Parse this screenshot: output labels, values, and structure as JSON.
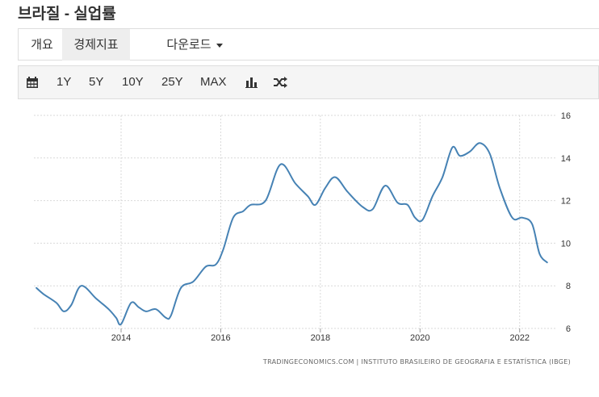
{
  "page": {
    "title": "브라질 - 실업률"
  },
  "tabs": [
    {
      "label": "개요"
    },
    {
      "label": "경제지표"
    },
    {
      "label": "다운로드"
    }
  ],
  "toolbar": {
    "calendar_icon": "calendar-icon",
    "ranges": [
      "1Y",
      "5Y",
      "10Y",
      "25Y",
      "MAX"
    ],
    "chart_type_icon": "bar-chart-icon",
    "compare_icon": "shuffle-icon"
  },
  "colors": {
    "line": "#4682b4",
    "tab_active_bg": "#eeeeee",
    "toolbar_bg": "#f5f5f5"
  },
  "chart_data": {
    "type": "line",
    "title": "",
    "xlabel": "",
    "ylabel": "",
    "ylim": [
      6,
      16
    ],
    "xlim": [
      2012.25,
      2022.75
    ],
    "y_axis_position": "right",
    "grid": true,
    "x_ticks": [
      "2014",
      "2016",
      "2018",
      "2020",
      "2022"
    ],
    "y_ticks": [
      "6",
      "8",
      "10",
      "12",
      "14",
      "16"
    ],
    "source": "TRADINGECONOMICS.COM | INSTITUTO BRASILEIRO DE GEOGRAFIA E ESTATÍSTICA (IBGE)",
    "series": [
      {
        "x": [
          2012.3,
          2012.45,
          2012.7,
          2012.85,
          2013.0,
          2013.2,
          2013.5,
          2013.75,
          2013.9,
          2014.0,
          2014.2,
          2014.35,
          2014.5,
          2014.7,
          2014.9,
          2015.0,
          2015.2,
          2015.45,
          2015.7,
          2015.9,
          2016.05,
          2016.25,
          2016.45,
          2016.6,
          2016.9,
          2017.2,
          2017.5,
          2017.75,
          2017.9,
          2018.1,
          2018.3,
          2018.55,
          2018.85,
          2019.05,
          2019.3,
          2019.55,
          2019.75,
          2019.9,
          2020.05,
          2020.25,
          2020.45,
          2020.65,
          2020.8,
          2021.0,
          2021.2,
          2021.4,
          2021.6,
          2021.85,
          2022.05,
          2022.25,
          2022.4,
          2022.55
        ],
        "values": [
          7.9,
          7.6,
          7.2,
          6.8,
          7.1,
          8.0,
          7.4,
          6.9,
          6.5,
          6.2,
          7.2,
          7.0,
          6.8,
          6.9,
          6.5,
          6.6,
          7.9,
          8.2,
          8.9,
          9.0,
          9.7,
          11.2,
          11.5,
          11.8,
          12.0,
          13.7,
          12.8,
          12.2,
          11.8,
          12.6,
          13.1,
          12.4,
          11.7,
          11.6,
          12.7,
          11.9,
          11.8,
          11.2,
          11.1,
          12.2,
          13.1,
          14.5,
          14.1,
          14.3,
          14.7,
          14.2,
          12.6,
          11.2,
          11.2,
          10.9,
          9.5,
          9.1
        ]
      }
    ]
  }
}
